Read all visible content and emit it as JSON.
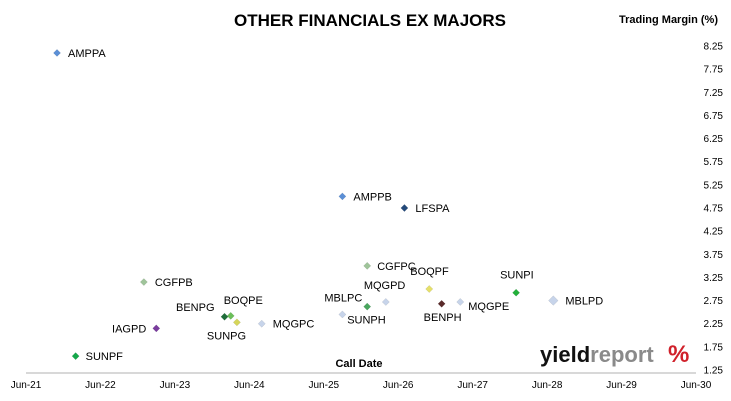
{
  "chart_data": {
    "type": "scatter",
    "title": "OTHER FINANCIALS EX MAJORS",
    "ylabel": "Trading Margin (%)",
    "xlabel": "Call Date",
    "x_ticks": [
      "Jun-21",
      "Jun-22",
      "Jun-23",
      "Jun-24",
      "Jun-25",
      "Jun-26",
      "Jun-27",
      "Jun-28",
      "Jun-29",
      "Jun-30"
    ],
    "y_ticks": [
      "8.25",
      "7.75",
      "7.25",
      "6.75",
      "6.25",
      "5.75",
      "5.25",
      "4.75",
      "4.25",
      "3.75",
      "3.25",
      "2.75",
      "2.25",
      "1.75",
      "1.25"
    ],
    "xlim": [
      "2021-06",
      "2030-06"
    ],
    "ylim": [
      1.25,
      8.25
    ],
    "y_axis_position": "right",
    "grid": false,
    "legend": "none",
    "points": [
      {
        "label": "AMPPA",
        "x": "2021-11",
        "y": 8.1,
        "color": "#5b8fd6"
      },
      {
        "label": "SUNPF",
        "x": "2022-02",
        "y": 1.55,
        "color": "#14a84a"
      },
      {
        "label": "CGFPB",
        "x": "2023-01",
        "y": 3.15,
        "color": "#9fc49a"
      },
      {
        "label": "IAGPD",
        "x": "2023-03",
        "y": 2.15,
        "color": "#7a3c9e"
      },
      {
        "label": "BENPG",
        "x": "2024-02",
        "y": 2.4,
        "color": "#1f6e3a"
      },
      {
        "label": "BOQPE",
        "x": "2024-03",
        "y": 2.42,
        "color": "#6bbf59"
      },
      {
        "label": "SUNPG",
        "x": "2024-04",
        "y": 2.28,
        "color": "#d6d65a"
      },
      {
        "label": "MQGPC",
        "x": "2024-08",
        "y": 2.25,
        "color": "#c7d4ea"
      },
      {
        "label": "AMPPB",
        "x": "2025-09",
        "y": 5.0,
        "color": "#5b8fd6"
      },
      {
        "label": "MBLPC",
        "x": "2025-09",
        "y": 2.45,
        "color": "#c7d4ea"
      },
      {
        "label": "CGFPC",
        "x": "2026-01",
        "y": 3.5,
        "color": "#9fc49a"
      },
      {
        "label": "SUNPH",
        "x": "2026-01",
        "y": 2.62,
        "color": "#49a65e"
      },
      {
        "label": "MQGPD",
        "x": "2026-04",
        "y": 2.72,
        "color": "#c7d4ea"
      },
      {
        "label": "LFSPA",
        "x": "2026-07",
        "y": 4.75,
        "color": "#23497a"
      },
      {
        "label": "BENPH",
        "x": "2027-01",
        "y": 2.68,
        "color": "#5a2a2a"
      },
      {
        "label": "BOQPF",
        "x": "2026-11",
        "y": 3.0,
        "color": "#e6e06a"
      },
      {
        "label": "MQGPE",
        "x": "2027-04",
        "y": 2.72,
        "color": "#c7d4ea"
      },
      {
        "label": "SUNPI",
        "x": "2028-01",
        "y": 2.92,
        "color": "#22b03a"
      },
      {
        "label": "MBLPD",
        "x": "2028-07",
        "y": 2.75,
        "color": "#c7d4ea"
      }
    ]
  },
  "logo": {
    "part1": "yield",
    "part2": "report",
    "symbol": "%"
  }
}
